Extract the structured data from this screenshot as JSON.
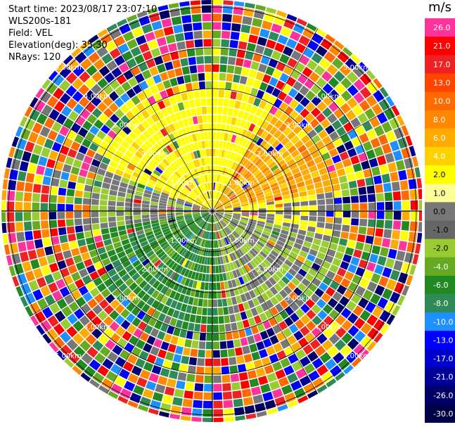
{
  "header": {
    "start_time": "Start time: 2023/08/17 23:07:10",
    "instrument": "WLS200s-181",
    "field": "Field: VEL",
    "elevation": "Elevation(deg): 35.30",
    "nrays": "NRays: 120"
  },
  "colorbar": {
    "unit": "m/s",
    "ticks": [
      "26.0",
      "21.0",
      "17.0",
      "13.0",
      "10.0",
      "8.0",
      "6.0",
      "4.0",
      "2.0",
      "1.0",
      "0.0",
      "-1.0",
      "-2.0",
      "-4.0",
      "-6.0",
      "-8.0",
      "-10.0",
      "-13.0",
      "-17.0",
      "-21.0",
      "-26.0",
      "-30.0"
    ],
    "colors": [
      "#ff3399",
      "#ff0000",
      "#ee2222",
      "#ff4400",
      "#ff6a00",
      "#ff8800",
      "#ffaa00",
      "#ffd000",
      "#ffff00",
      "#ffff99",
      "#777777",
      "#666666",
      "#99cc33",
      "#66aa22",
      "#228822",
      "#2e8b57",
      "#1e90ff",
      "#0000ff",
      "#0000cc",
      "#000099",
      "#000066",
      "#000044"
    ]
  },
  "chart_data": {
    "type": "heatmap",
    "subtype": "polar-ppi",
    "field": "VEL",
    "nrays": 120,
    "ring_labels": [
      "1.00km",
      "2.00km",
      "3.00km",
      "4.00km",
      "5.00km"
    ],
    "ring_km": [
      1,
      2,
      3,
      4,
      5
    ],
    "max_range_km": 6.3,
    "value_range": [
      -30,
      26
    ],
    "pattern": "wind toward north-east positive (yellow/orange), toward south-west negative (green); noise beyond ~3 km"
  }
}
